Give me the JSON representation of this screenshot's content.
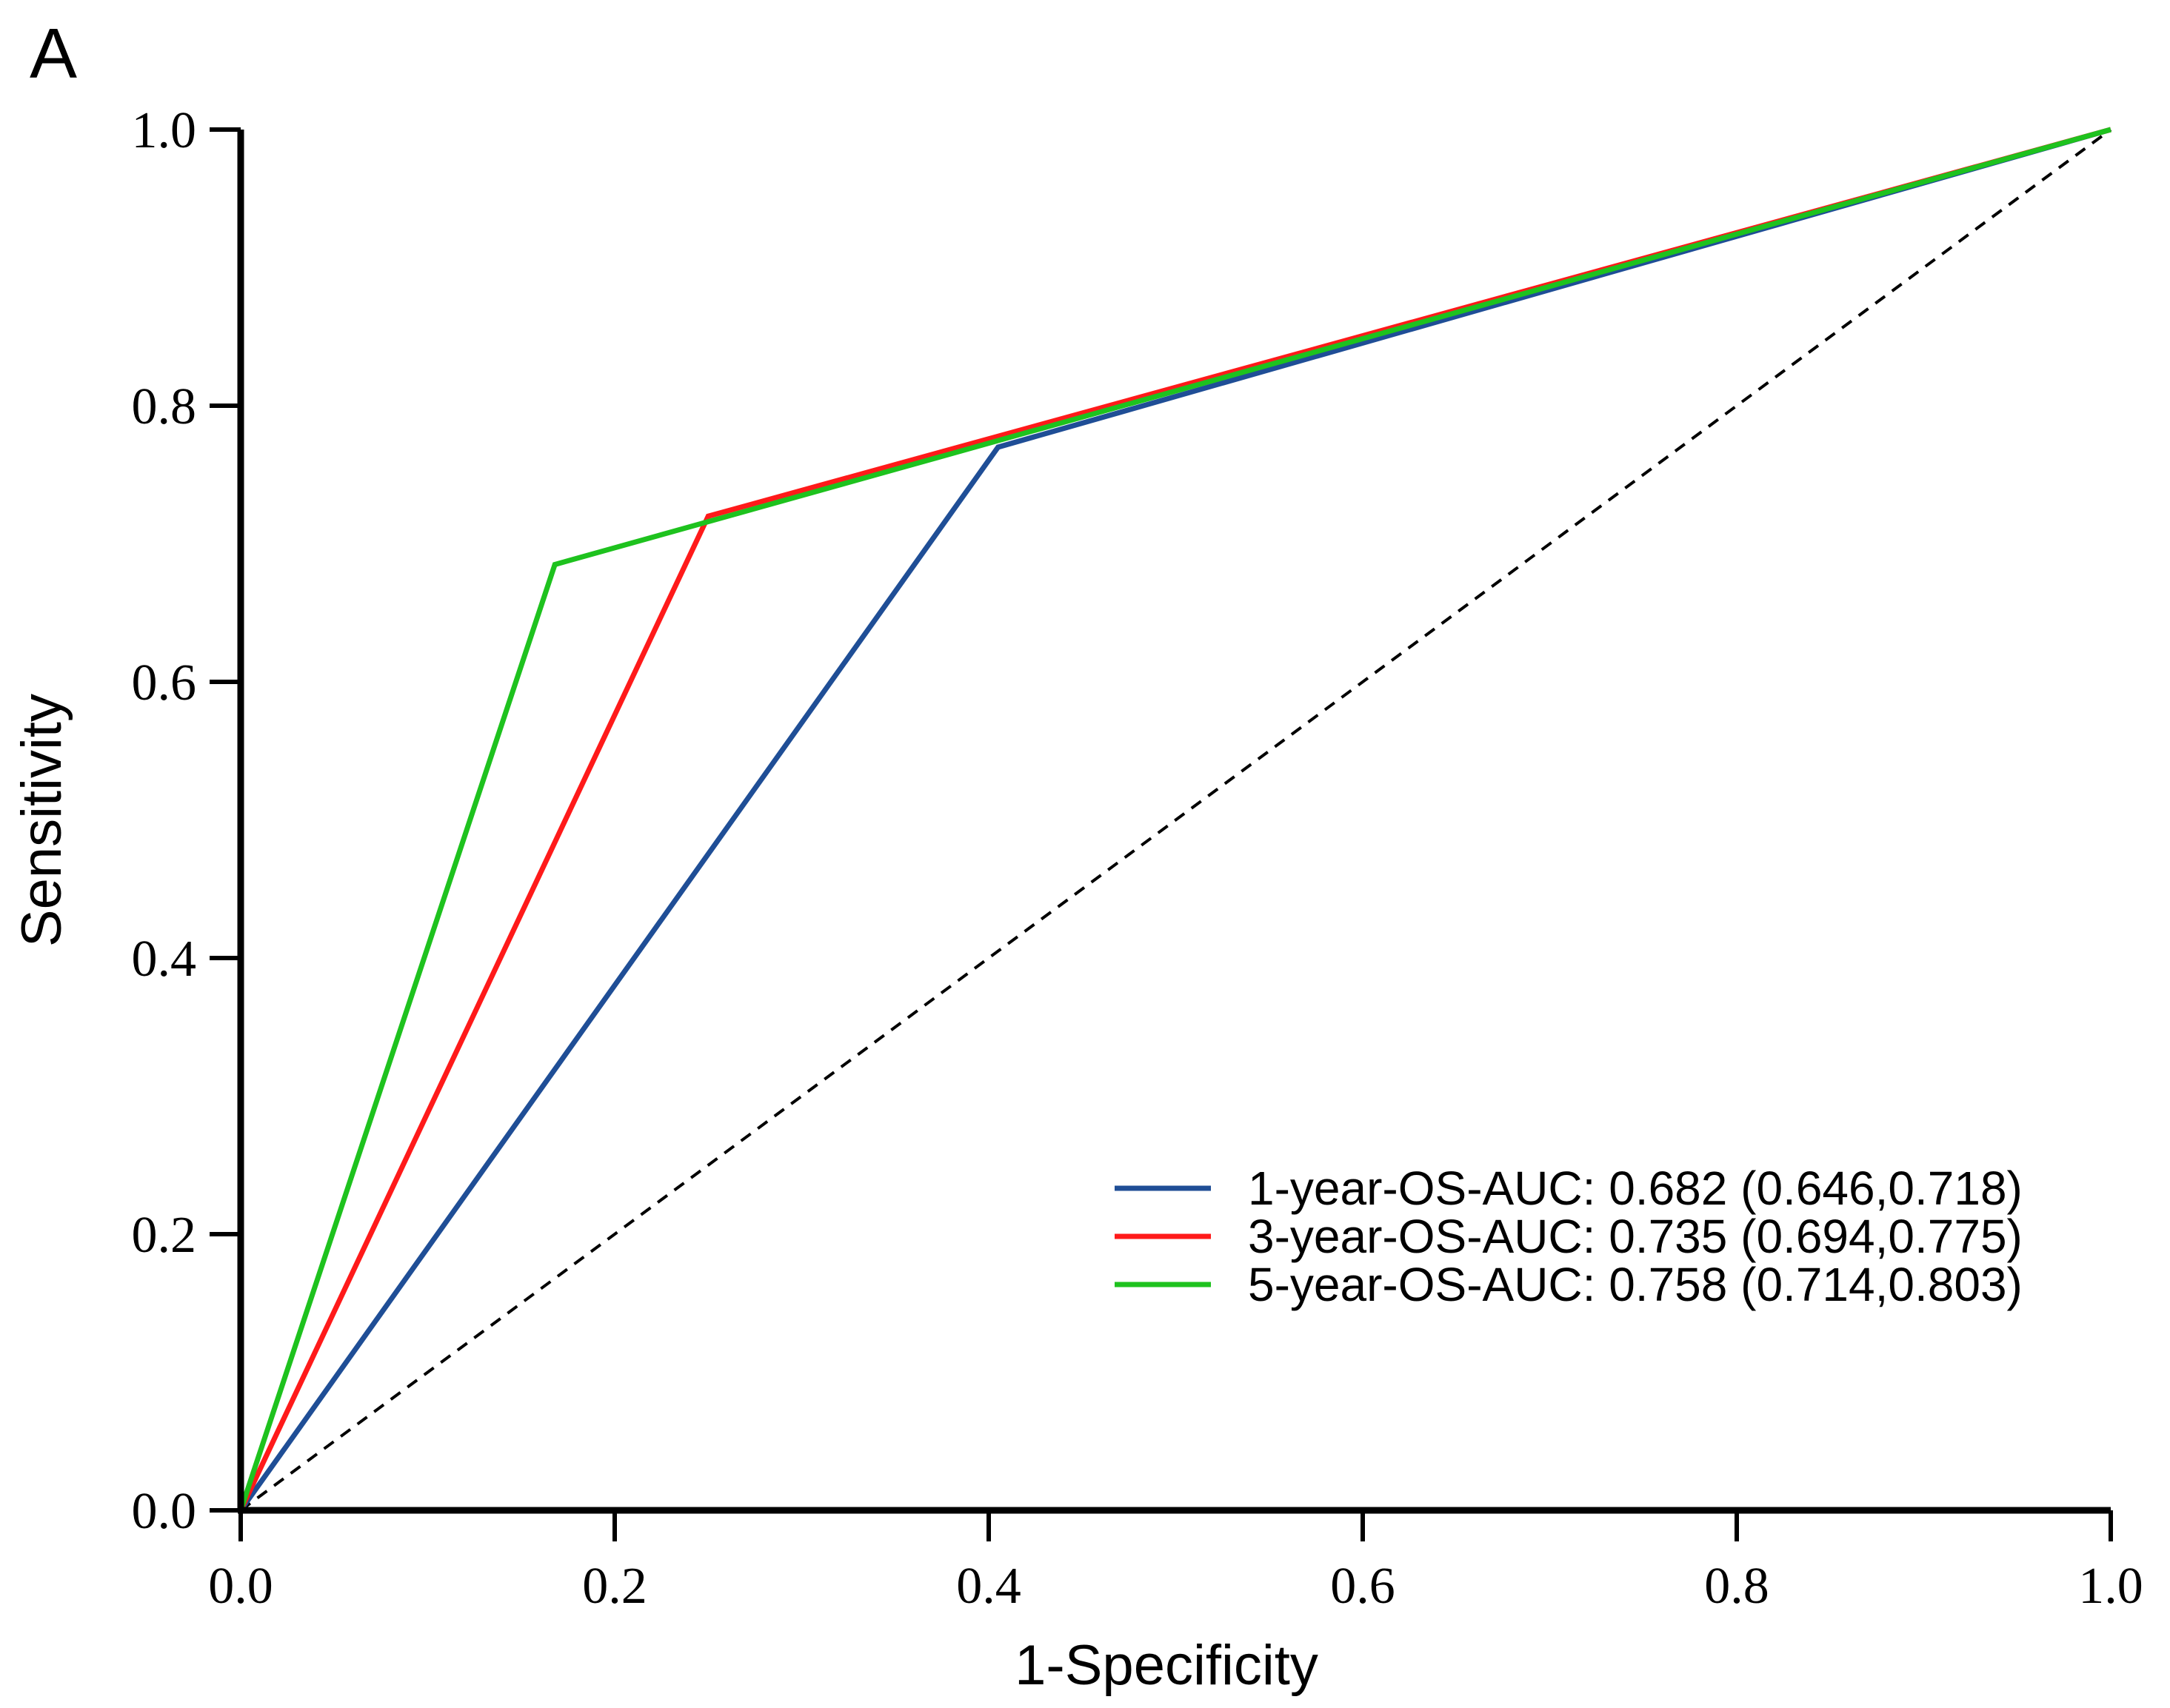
{
  "panel_label": "A",
  "chart_data": {
    "type": "line",
    "title": "",
    "xlabel": "1-Specificity",
    "ylabel": "Sensitivity",
    "xlim": [
      0,
      1
    ],
    "ylim": [
      0,
      1
    ],
    "x_ticks": [
      "0.0",
      "0.2",
      "0.4",
      "0.6",
      "0.8",
      "1.0"
    ],
    "y_ticks": [
      "0.0",
      "0.2",
      "0.4",
      "0.6",
      "0.8",
      "1.0"
    ],
    "grid": false,
    "legend_position": "bottom-right",
    "reference_line": {
      "x": [
        0,
        1
      ],
      "y": [
        0,
        1
      ],
      "style": "dashed",
      "color": "#000000"
    },
    "series": [
      {
        "name": "1-year-OS-AUC: 0.682 (0.646,0.718)",
        "color": "#1f4e96",
        "x": [
          0,
          0.405,
          1
        ],
        "y": [
          0,
          0.77,
          1
        ]
      },
      {
        "name": "3-year-OS-AUC: 0.735 (0.694,0.775)",
        "color": "#ff1a1a",
        "x": [
          0,
          0.25,
          1
        ],
        "y": [
          0,
          0.72,
          1
        ]
      },
      {
        "name": "5-year-OS-AUC: 0.758 (0.714,0.803)",
        "color": "#1ec21e",
        "x": [
          0,
          0.168,
          1
        ],
        "y": [
          0,
          0.685,
          1
        ]
      }
    ]
  }
}
